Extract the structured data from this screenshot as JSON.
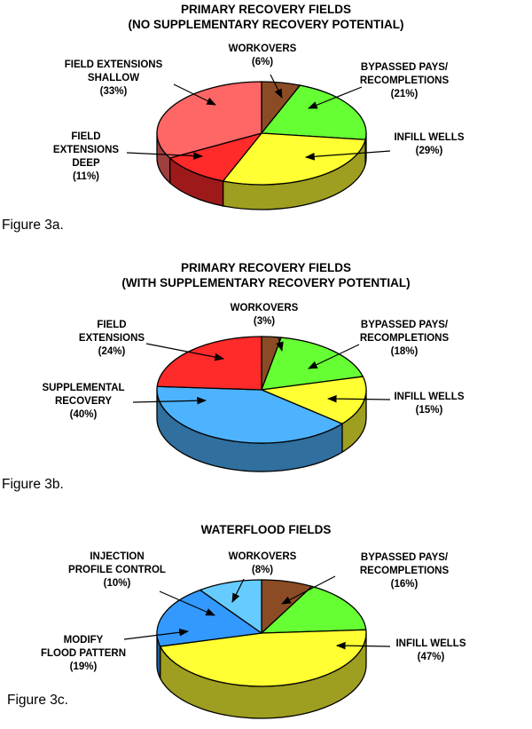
{
  "chart_data": [
    {
      "type": "pie",
      "title": [
        "PRIMARY RECOVERY FIELDS",
        "(NO SUPPLEMENTARY RECOVERY POTENTIAL)"
      ],
      "caption": "Figure 3a.",
      "slices": [
        {
          "label": [
            "WORKOVERS",
            "(6%)"
          ],
          "value": 6,
          "color": "#8b4c25"
        },
        {
          "label": [
            "BYPASSED PAYS/",
            "RECOMPLETIONS",
            "(21%)"
          ],
          "value": 21,
          "color": "#66ff33"
        },
        {
          "label": [
            "INFILL WELLS",
            "(29%)"
          ],
          "value": 29,
          "color": "#ffff33"
        },
        {
          "label": [
            "FIELD",
            "EXTENSIONS",
            "DEEP",
            "(11%)"
          ],
          "value": 11,
          "color": "#ff2a2a"
        },
        {
          "label": [
            "FIELD EXTENSIONS",
            "SHALLOW",
            "(33%)"
          ],
          "value": 33,
          "color": "#ff6666"
        }
      ]
    },
    {
      "type": "pie",
      "title": [
        "PRIMARY RECOVERY FIELDS",
        "(WITH SUPPLEMENTARY RECOVERY POTENTIAL)"
      ],
      "caption": "Figure 3b.",
      "slices": [
        {
          "label": [
            "WORKOVERS",
            "(3%)"
          ],
          "value": 3,
          "color": "#8b4c25"
        },
        {
          "label": [
            "BYPASSED PAYS/",
            "RECOMPLETIONS",
            "(18%)"
          ],
          "value": 18,
          "color": "#66ff33"
        },
        {
          "label": [
            "INFILL WELLS",
            "(15%)"
          ],
          "value": 15,
          "color": "#ffff33"
        },
        {
          "label": [
            "SUPPLEMENTAL",
            "RECOVERY",
            "(40%)"
          ],
          "value": 40,
          "color": "#4db3ff"
        },
        {
          "label": [
            "FIELD",
            "EXTENSIONS",
            "(24%)"
          ],
          "value": 24,
          "color": "#ff2a2a"
        }
      ]
    },
    {
      "type": "pie",
      "title": [
        "WATERFLOOD FIELDS"
      ],
      "caption": "Figure 3c.",
      "slices": [
        {
          "label": [
            "WORKOVERS",
            "(8%)"
          ],
          "value": 8,
          "color": "#8b4c25"
        },
        {
          "label": [
            "BYPASSED PAYS/",
            "RECOMPLETIONS",
            "(16%)"
          ],
          "value": 16,
          "color": "#66ff33"
        },
        {
          "label": [
            "INFILL WELLS",
            "(47%)"
          ],
          "value": 47,
          "color": "#ffff33"
        },
        {
          "label": [
            "MODIFY",
            "FLOOD PATTERN",
            "(19%)"
          ],
          "value": 19,
          "color": "#3399ff"
        },
        {
          "label": [
            "INJECTION",
            "PROFILE CONTROL",
            "(10%)"
          ],
          "value": 10,
          "color": "#66ccff"
        }
      ]
    }
  ]
}
